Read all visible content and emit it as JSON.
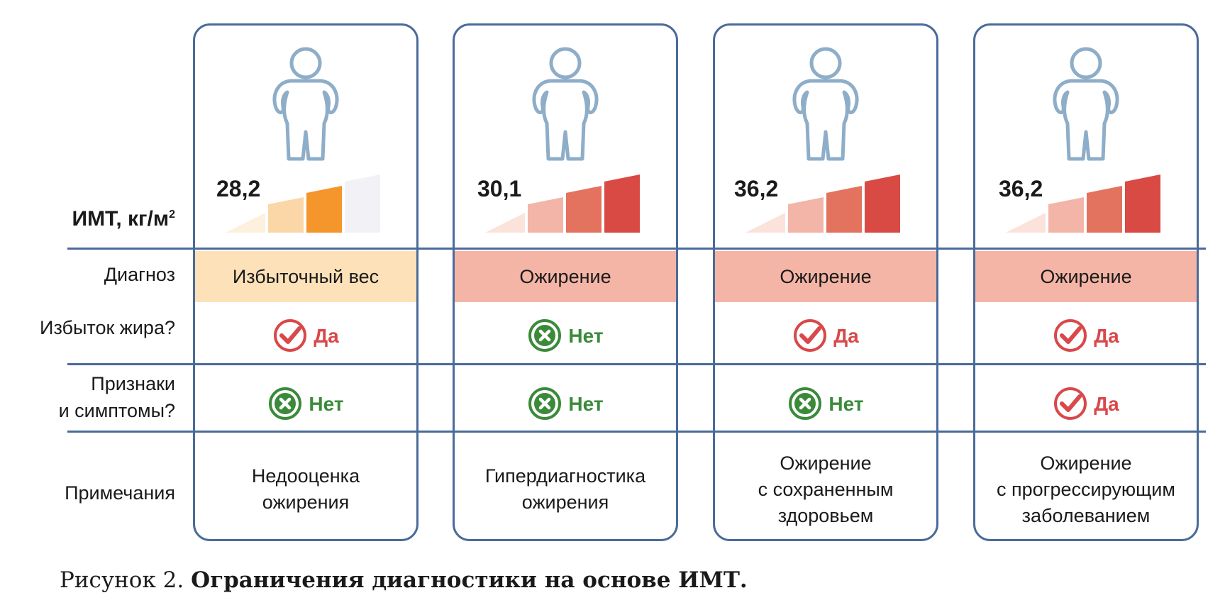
{
  "row_labels": {
    "bmi": "ИМТ, кг/м",
    "bmi_sup": "2",
    "diagnosis": "Диагноз",
    "excess_fat": "Избыток жира?",
    "signs_line1": "Признаки",
    "signs_line2": "и симптомы?",
    "notes": "Примечания"
  },
  "cards": [
    {
      "bmi": "28,2",
      "diagnosis": "Избыточный вес",
      "excess_fat": {
        "label": "Да",
        "status": "yes"
      },
      "signs": {
        "label": "Нет",
        "status": "no"
      },
      "notes": [
        "Недооценка",
        "ожирения"
      ]
    },
    {
      "bmi": "30,1",
      "diagnosis": "Ожирение",
      "excess_fat": {
        "label": "Нет",
        "status": "no"
      },
      "signs": {
        "label": "Нет",
        "status": "no"
      },
      "notes": [
        "Гипердиагностика",
        "ожирения"
      ]
    },
    {
      "bmi": "36,2",
      "diagnosis": "Ожирение",
      "excess_fat": {
        "label": "Да",
        "status": "yes"
      },
      "signs": {
        "label": "Нет",
        "status": "no"
      },
      "notes": [
        "Ожирение",
        "с сохраненным",
        "здоровьем"
      ]
    },
    {
      "bmi": "36,2",
      "diagnosis": "Ожирение",
      "excess_fat": {
        "label": "Да",
        "status": "yes"
      },
      "signs": {
        "label": "Да",
        "status": "yes"
      },
      "notes": [
        "Ожирение",
        "с прогрессирующим",
        "заболеванием"
      ]
    }
  ],
  "caption": {
    "prefix": "Рисунок 2. ",
    "title": "Ограничения диагностики на основе ИМТ."
  },
  "colors": {
    "border": "#4a6b9a",
    "overweight_band": "#fde1b8",
    "obesity_band": "#f5b5a6",
    "yes_icon": "#d9484a",
    "no_icon": "#3a8a3a",
    "figure_stroke": "#8eadc8",
    "overweight_bars": [
      "#fdf0de",
      "#fbd7a8",
      "#f4962b",
      "#f2f2f6"
    ],
    "obesity_bars": [
      "#fbe3dc",
      "#f2b5a7",
      "#e3735f",
      "#d84a43"
    ]
  },
  "bar_levels": {
    "filled_segments": [
      3,
      4,
      4,
      4
    ],
    "total_segments": 4
  }
}
